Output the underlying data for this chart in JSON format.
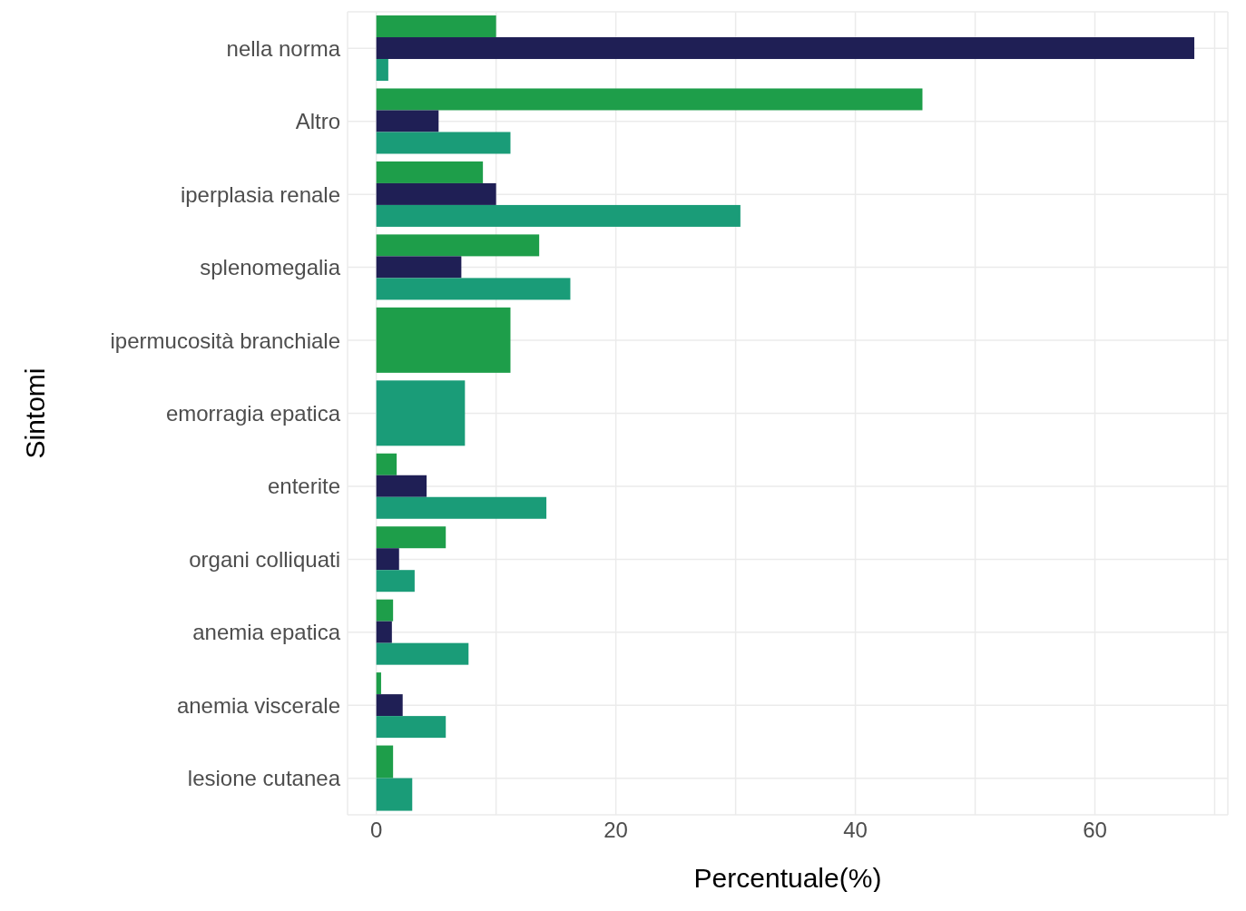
{
  "chart_data": {
    "type": "bar",
    "orientation": "horizontal",
    "xlabel": "Percentuale(%)",
    "ylabel": "Sintomi",
    "categories": [
      "nella norma",
      "Altro",
      "iperplasia renale",
      "splenomegalia",
      "ipermucosità branchiale",
      "emorragia epatica",
      "enterite",
      "organi colliquati",
      "anemia epatica",
      "anemia viscerale",
      "lesione cutanea"
    ],
    "series": [
      {
        "color": "#1e9e4a",
        "values": [
          10.0,
          45.6,
          8.9,
          13.6,
          11.2,
          null,
          1.7,
          5.8,
          1.4,
          0.4,
          1.4
        ]
      },
      {
        "color": "#1f1f55",
        "values": [
          68.3,
          5.2,
          10.0,
          7.1,
          null,
          null,
          4.2,
          1.9,
          1.3,
          2.2,
          null
        ]
      },
      {
        "color": "#1a9c78",
        "values": [
          1.0,
          11.2,
          30.4,
          16.2,
          null,
          7.4,
          14.2,
          3.2,
          7.7,
          5.8,
          3.0
        ]
      }
    ],
    "xlim": [
      -2.4,
      71.1
    ],
    "xticks": [
      0,
      {
        "value": 10,
        "label": null
      },
      20,
      {
        "value": 30,
        "label": null
      },
      40,
      {
        "value": 50,
        "label": null
      },
      60,
      {
        "value": 70,
        "label": null
      }
    ],
    "grid": true
  }
}
